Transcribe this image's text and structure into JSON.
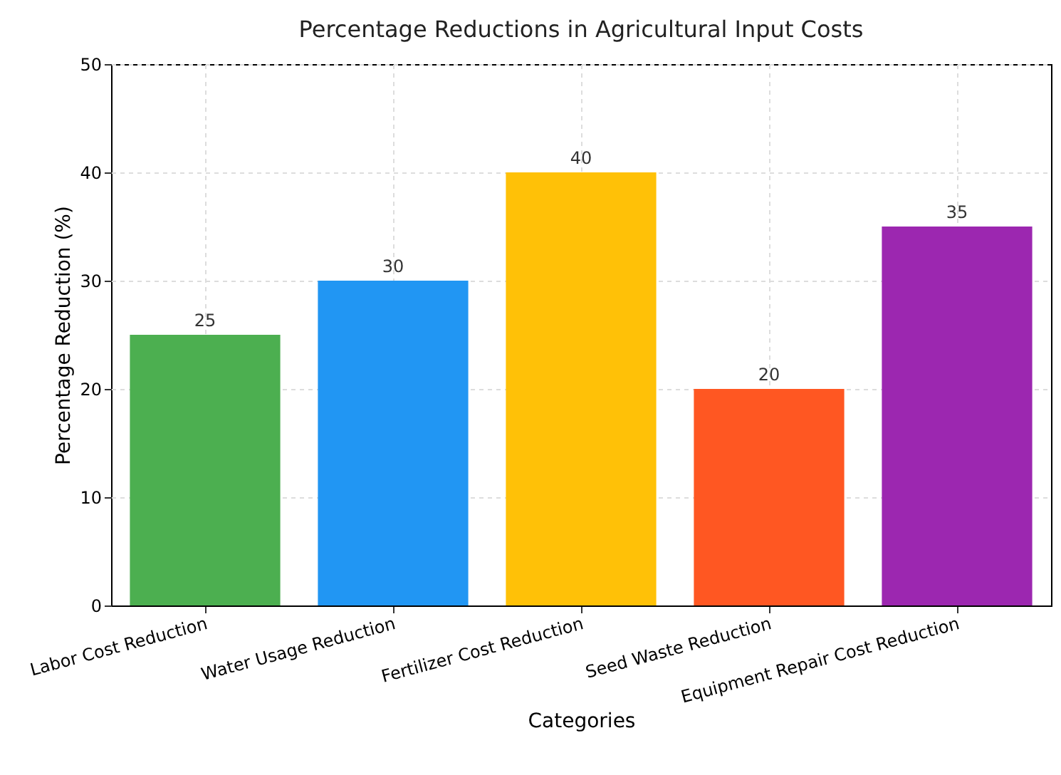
{
  "chart_data": {
    "type": "bar",
    "title": "Percentage Reductions in Agricultural Input Costs",
    "xlabel": "Categories",
    "ylabel": "Percentage Reduction (%)",
    "categories": [
      "Labor Cost Reduction",
      "Water Usage Reduction",
      "Fertilizer Cost Reduction",
      "Seed Waste Reduction",
      "Equipment Repair Cost Reduction"
    ],
    "values": [
      25,
      30,
      40,
      20,
      35
    ],
    "colors": [
      "#4caf50",
      "#2196f3",
      "#ffc107",
      "#ff5722",
      "#9c27b0"
    ],
    "ylim": [
      0,
      50
    ],
    "yticks": [
      0,
      10,
      20,
      30,
      40,
      50
    ],
    "grid": true,
    "data_labels": true
  }
}
